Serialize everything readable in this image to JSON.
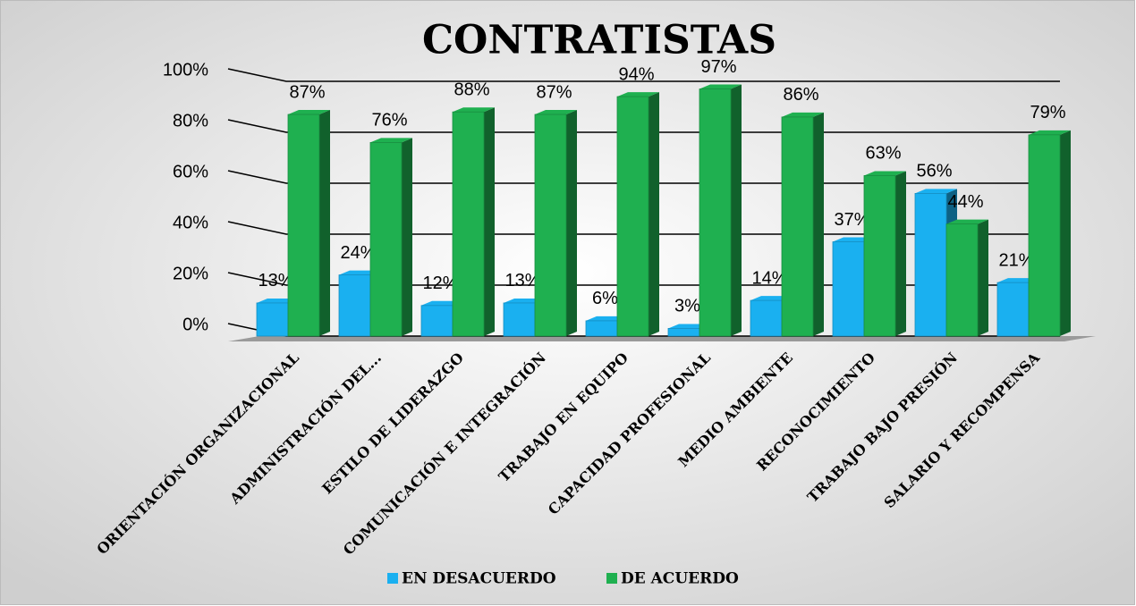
{
  "chart_data": {
    "type": "bar",
    "title": "CONTRATISTAS",
    "categories": [
      "ORIENTACIÓN ORGANIZACIONAL",
      "ADMINISTRACIÓN DEL...",
      "ESTILO DE LIDERAZGO",
      "COMUNICACIÓN E INTEGRACIÓN",
      "TRABAJO EN EQUIPO",
      "CAPACIDAD PROFESIONAL",
      "MEDIO AMBIENTE",
      "RECONOCIMIENTO",
      "TRABAJO BAJO PRESIÓN",
      "SALARIO Y RECOMPENSA"
    ],
    "series": [
      {
        "name": "EN DESACUERDO",
        "color": "#1ab0f0",
        "values": [
          13,
          24,
          12,
          13,
          6,
          3,
          14,
          37,
          56,
          21
        ],
        "value_labels": [
          "13%",
          "24%",
          "12%",
          "13%",
          "6%",
          "3%",
          "14%",
          "37%",
          "56%",
          "21%"
        ]
      },
      {
        "name": "DE ACUERDO",
        "color": "#1fb050",
        "values": [
          87,
          76,
          88,
          87,
          94,
          97,
          86,
          63,
          44,
          79
        ],
        "value_labels": [
          "87%",
          "76%",
          "88%",
          "87%",
          "94%",
          "97%",
          "86%",
          "63%",
          "44%",
          "79%"
        ]
      }
    ],
    "ylim": [
      0,
      100
    ],
    "yticks": [
      {
        "value": 0,
        "label": "0%"
      },
      {
        "value": 20,
        "label": "20%"
      },
      {
        "value": 40,
        "label": "40%"
      },
      {
        "value": 60,
        "label": "60%"
      },
      {
        "value": 80,
        "label": "80%"
      },
      {
        "value": 100,
        "label": "100%"
      }
    ],
    "grid": true,
    "legend": "bottom"
  }
}
